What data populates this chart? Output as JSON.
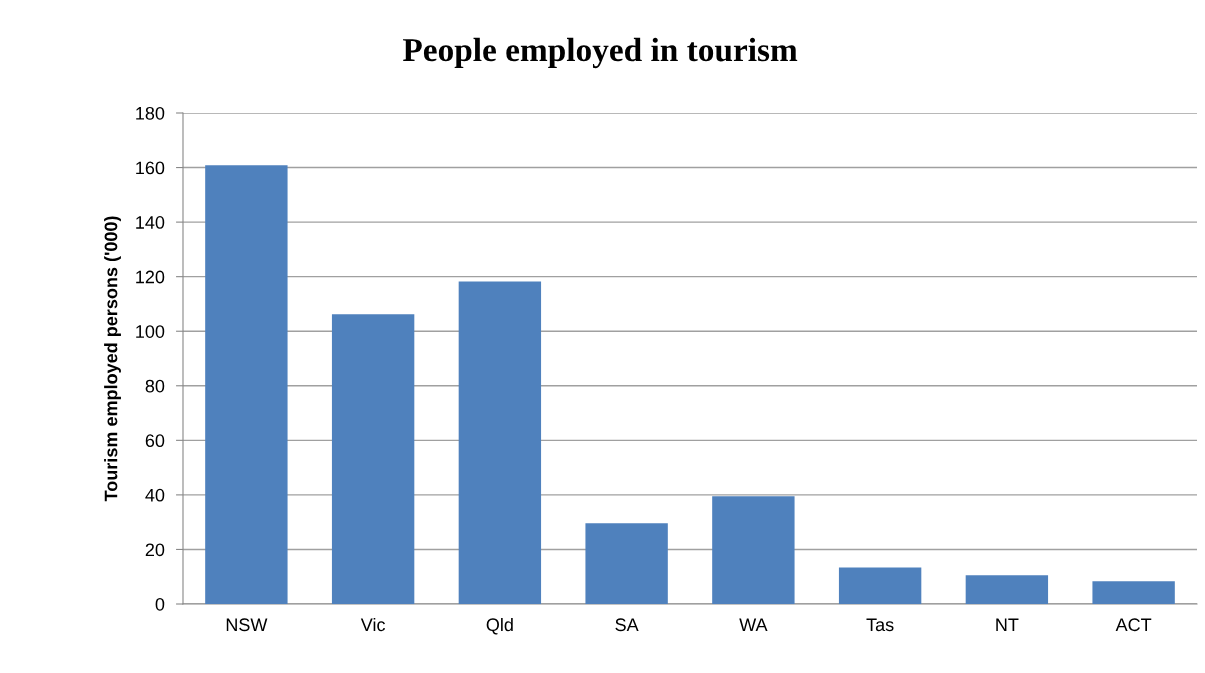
{
  "chart_data": {
    "type": "bar",
    "title": "People employed in tourism",
    "ylabel": "Tourism employed persons ('000)",
    "categories": [
      "NSW",
      "Vic",
      "Qld",
      "SA",
      "WA",
      "Tas",
      "NT",
      "ACT"
    ],
    "values": [
      160.8,
      106.2,
      118.2,
      29.6,
      39.5,
      13.4,
      10.5,
      8.3
    ],
    "color": "#4f81bd",
    "ylim": [
      0,
      180
    ],
    "yticks": [
      0,
      20,
      40,
      60,
      80,
      100,
      120,
      140,
      160,
      180
    ],
    "grid": "y",
    "legend": false
  }
}
